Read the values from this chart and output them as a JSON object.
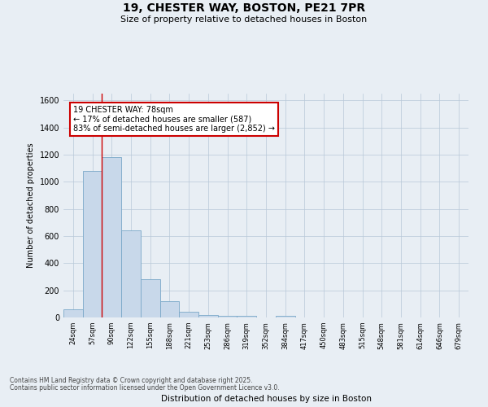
{
  "title1": "19, CHESTER WAY, BOSTON, PE21 7PR",
  "title2": "Size of property relative to detached houses in Boston",
  "xlabel": "Distribution of detached houses by size in Boston",
  "ylabel": "Number of detached properties",
  "bar_color": "#c8d8ea",
  "bar_edgecolor": "#7aa8c8",
  "vline_color": "#cc0000",
  "annotation_text": "19 CHESTER WAY: 78sqm\n← 17% of detached houses are smaller (587)\n83% of semi-detached houses are larger (2,852) →",
  "categories": [
    "24sqm",
    "57sqm",
    "90sqm",
    "122sqm",
    "155sqm",
    "188sqm",
    "221sqm",
    "253sqm",
    "286sqm",
    "319sqm",
    "352sqm",
    "384sqm",
    "417sqm",
    "450sqm",
    "483sqm",
    "515sqm",
    "548sqm",
    "581sqm",
    "614sqm",
    "646sqm",
    "679sqm"
  ],
  "values": [
    60,
    1080,
    1180,
    640,
    280,
    120,
    40,
    20,
    10,
    10,
    0,
    10,
    0,
    0,
    0,
    0,
    0,
    0,
    0,
    0,
    0
  ],
  "ylim": [
    0,
    1650
  ],
  "yticks": [
    0,
    200,
    400,
    600,
    800,
    1000,
    1200,
    1400,
    1600
  ],
  "footer1": "Contains HM Land Registry data © Crown copyright and database right 2025.",
  "footer2": "Contains public sector information licensed under the Open Government Licence v3.0.",
  "bg_color": "#e8eef4",
  "plot_bg_color": "#e8eef4"
}
